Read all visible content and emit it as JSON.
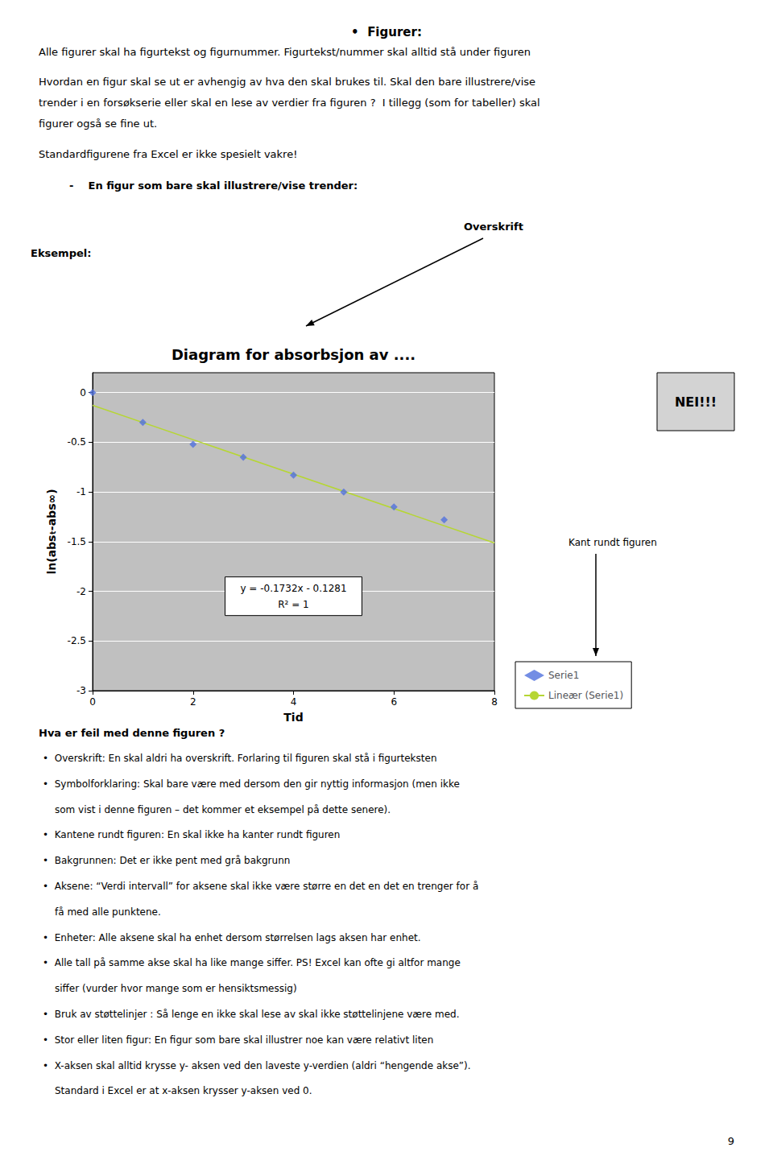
{
  "chart_data": {
    "type": "scatter",
    "title": "Diagram for absorbsjon av ....",
    "xlabel": "Tid",
    "ylabel": "ln(absₜ-abs∞)",
    "xlim": [
      0,
      8
    ],
    "ylim": [
      -3,
      0.2
    ],
    "xticks": [
      0,
      2,
      4,
      6,
      8
    ],
    "yticks": [
      0,
      -0.5,
      -1,
      -1.5,
      -2,
      -2.5,
      -3
    ],
    "grid": "y",
    "legend": "right",
    "series": [
      {
        "name": "Serie1",
        "type": "scatter",
        "marker": "diamond",
        "x": [
          0,
          1,
          2,
          3,
          4,
          5,
          6,
          7
        ],
        "values": [
          0,
          -0.3,
          -0.52,
          -0.65,
          -0.83,
          -1.0,
          -1.15,
          -1.28
        ]
      },
      {
        "name": "Lineær (Serie1)",
        "type": "line",
        "line_style": "solid",
        "x": [
          0,
          8
        ],
        "values": [
          -0.1281,
          -1.5137
        ]
      }
    ],
    "annotations": [
      "•  Figurer:",
      "Alle figurer skal ha figurtekst og figurnummer. Figurtekst/nummer skal alltid stå under figuren",
      "Hvordan en figur skal se ut er avhengig av hva den skal brukes til. Skal den bare illustrere/vise",
      "trender i en forsøkserie eller skal en lese av verdier fra figuren ?  I tillegg (som for tabeller) skal",
      "figurer også se fine ut.",
      "Standardfigurene fra Excel er ikke spesielt vakre!",
      "-    En figur som bare skal illustrere/vise trender:",
      "Overskrift",
      "Eksempel:",
      "NEI!!!",
      "Kant rundt figuren",
      "y = -0.1732x - 0.1281",
      "R² = 1",
      "Hva er feil med denne figuren ?",
      "•  Overskrift: En skal aldri ha overskrift. Forlaring til figuren skal stå i figurteksten",
      "•  Symbolforklaring: Skal bare være med dersom den gir nyttig informasjon (men ikke",
      "som vist i denne figuren – det kommer et eksempel på dette senere).",
      "•  Kantene rundt figuren: En skal ikke ha kanter rundt figuren",
      "•  Bakgrunnen: Det er ikke pent med grå bakgrunn",
      "•  Aksene: “Verdi intervall” for aksene skal ikke være større en det en det en trenger for å",
      "få med alle punktene.",
      "•  Enheter: Alle aksene skal ha enhet dersom størrelsen lags aksen har enhet.",
      "•  Alle tall på samme akse skal ha like mange siffer. PS! Excel kan ofte gi altfor mange",
      "siffer (vurder hvor mange som er hensiktsmessig)",
      "•  Bruk av støttelinjer : Så lenge en ikke skal lese av skal ikke støttelinjene være med.",
      "•  Stor eller liten figur: En figur som bare skal illustrer noe kan være relativt liten",
      "•  X-aksen skal alltid krysse y- aksen ved den laveste y-verdien (aldri “hengende akse”).",
      "Standard i Excel er at x-aksen krysser y-aksen ved 0.",
      "9"
    ]
  }
}
